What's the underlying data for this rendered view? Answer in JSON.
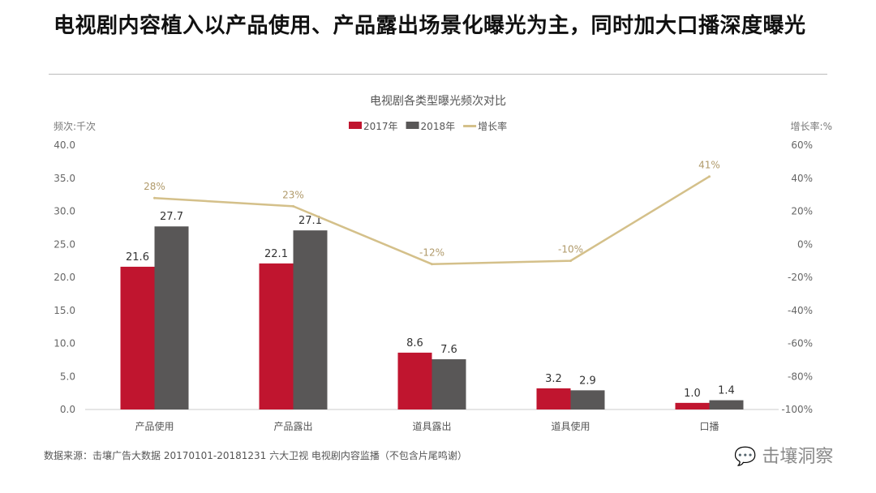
{
  "page": {
    "title": "电视剧内容植入以产品使用、产品露出场景化曝光为主，同时加大口播深度曝光",
    "source": "数据来源：击壤广告大数据 20170101-20181231 六大卫视 电视剧内容监播（不包含片尾鸣谢）",
    "watermark": "击壤洞察"
  },
  "chart_data": {
    "type": "bar+line",
    "title": "电视剧各类型曝光频次对比",
    "ylabel": "频次:千次",
    "y2label": "增长率:%",
    "categories": [
      "产品使用",
      "产品露出",
      "道具露出",
      "道具使用",
      "口播"
    ],
    "ylim": [
      0,
      40
    ],
    "yticks": [
      "0.0",
      "5.0",
      "10.0",
      "15.0",
      "20.0",
      "25.0",
      "30.0",
      "35.0",
      "40.0"
    ],
    "y2lim": [
      -100,
      60
    ],
    "y2ticks": [
      "-100%",
      "-80%",
      "-60%",
      "-40%",
      "-20%",
      "0%",
      "20%",
      "40%",
      "60%"
    ],
    "legend_position": "top-center",
    "grid": false,
    "series": [
      {
        "name": "2017年",
        "type": "bar",
        "color": "#c0152f",
        "values": [
          21.6,
          22.1,
          8.6,
          3.2,
          1.0
        ],
        "labels": [
          "21.6",
          "22.1",
          "8.6",
          "3.2",
          "1.0"
        ]
      },
      {
        "name": "2018年",
        "type": "bar",
        "color": "#595757",
        "values": [
          27.7,
          27.1,
          7.6,
          2.9,
          1.4
        ],
        "labels": [
          "27.7",
          "27.1",
          "7.6",
          "2.9",
          "1.4"
        ]
      },
      {
        "name": "增长率",
        "type": "line",
        "axis": "right",
        "color": "#d4c08a",
        "values": [
          28,
          23,
          -12,
          -10,
          41
        ],
        "labels": [
          "28%",
          "23%",
          "-12%",
          "-10%",
          "41%"
        ]
      }
    ]
  }
}
